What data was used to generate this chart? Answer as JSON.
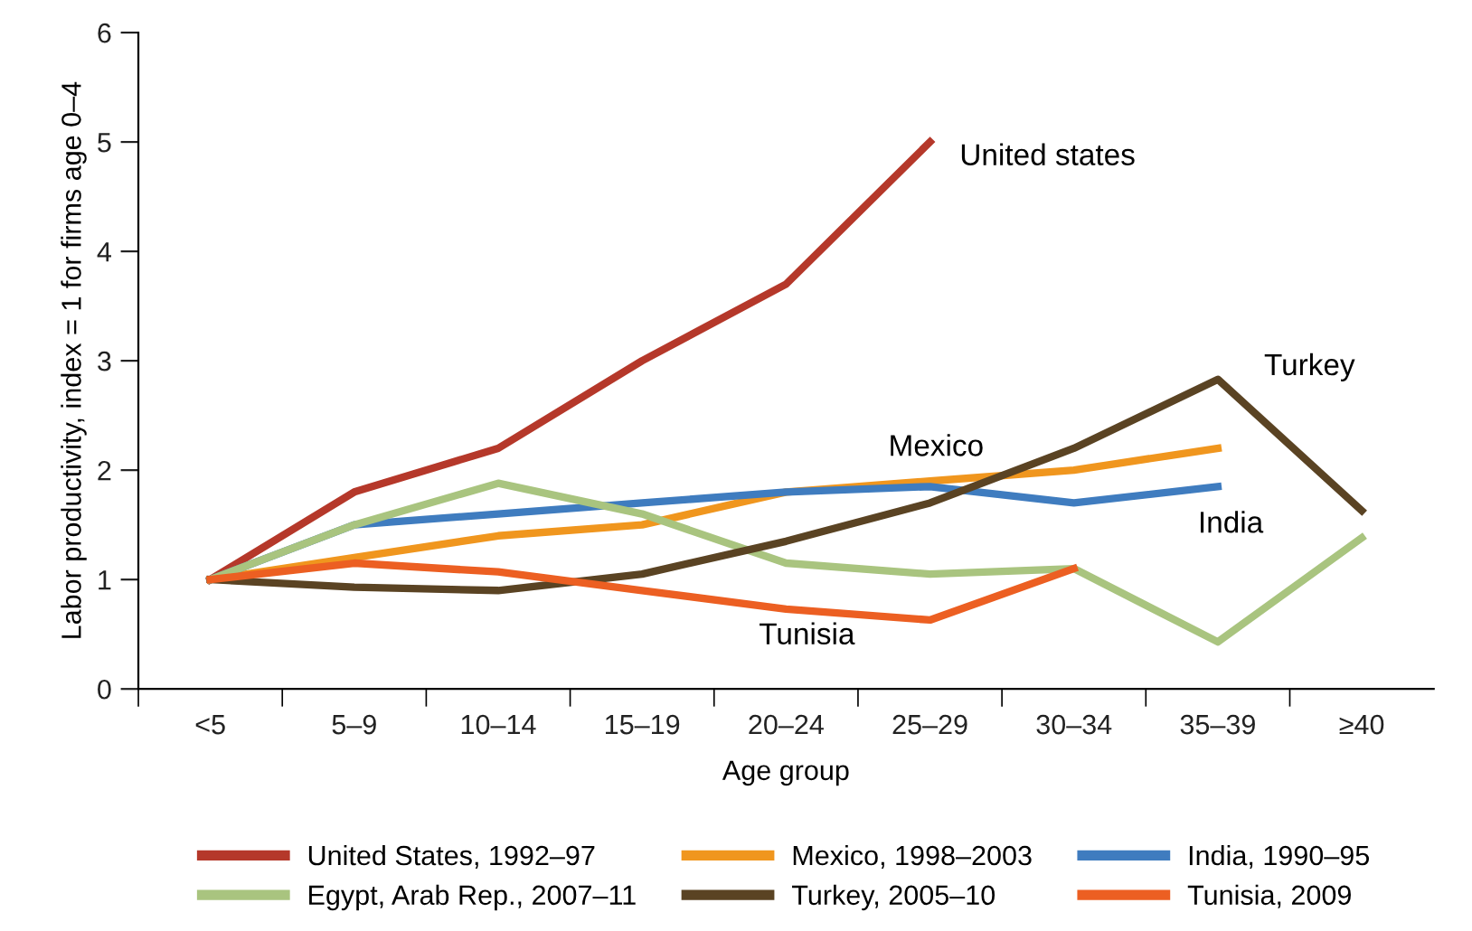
{
  "chart_data": {
    "type": "line",
    "xlabel": "Age group",
    "ylabel": "Labor productivity, index = 1 for firms age 0–4",
    "categories": [
      "<5",
      "5–9",
      "10–14",
      "15–19",
      "20–24",
      "25–29",
      "30–34",
      "35–39",
      "≥40"
    ],
    "ylim": [
      0,
      6
    ],
    "yticks": [
      0,
      1,
      2,
      3,
      4,
      5,
      6
    ],
    "grid": false,
    "legend": "bottom",
    "marker": "none",
    "line_style": "solid",
    "series": [
      {
        "name": "United States, 1992–97",
        "color": "#b5382a",
        "values": [
          1,
          1.8,
          2.2,
          3.0,
          3.7,
          5.0,
          null,
          null,
          null
        ]
      },
      {
        "name": "Mexico, 1998–2003",
        "color": "#f0961e",
        "values": [
          1,
          1.2,
          1.4,
          1.5,
          1.8,
          1.9,
          2.0,
          2.2,
          null
        ]
      },
      {
        "name": "India, 1990–95",
        "color": "#3f7cbf",
        "values": [
          1,
          1.5,
          1.6,
          1.7,
          1.8,
          1.85,
          1.7,
          1.85,
          null
        ]
      },
      {
        "name": "Egypt, Arab Rep., 2007–11",
        "color": "#a9c47f",
        "values": [
          1,
          1.5,
          1.88,
          1.6,
          1.15,
          1.05,
          1.1,
          0.43,
          1.38
        ]
      },
      {
        "name": "Turkey, 2005–10",
        "color": "#5a4323",
        "values": [
          1,
          0.93,
          0.9,
          1.05,
          1.35,
          1.7,
          2.2,
          2.83,
          1.63
        ]
      },
      {
        "name": "Tunisia, 2009",
        "color": "#ec5f22",
        "values": [
          1,
          1.15,
          1.07,
          0.9,
          0.73,
          0.63,
          1.1,
          null,
          null
        ]
      }
    ],
    "annotations": [
      "United states",
      "Mexico",
      "India",
      "Turkey",
      "Tunisia"
    ]
  }
}
